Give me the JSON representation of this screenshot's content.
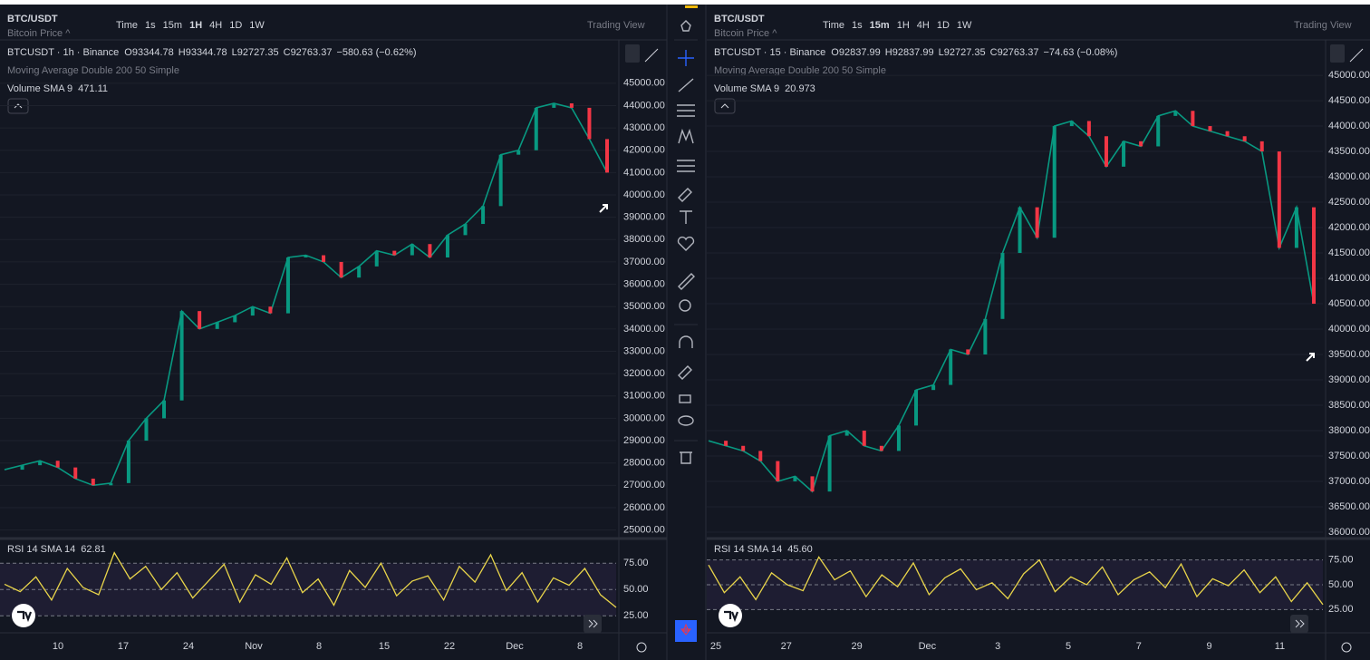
{
  "panels": [
    {
      "symbol": "BTC/USDT",
      "subtitle": "Bitcoin Price ^",
      "timeframes": [
        "Time",
        "1s",
        "15m",
        "1H",
        "4H",
        "1D",
        "1W"
      ],
      "active_timeframe": "1H",
      "layout_label": "Trading View",
      "legend_name": "BTCUSDT · 1h · Binance",
      "ohlc": [
        {
          "label": "O",
          "value": "93344.78"
        },
        {
          "label": "H",
          "value": "93344.78"
        },
        {
          "label": "L",
          "value": "92727.35"
        },
        {
          "label": "C",
          "value": "92763.37"
        }
      ],
      "change": "−580.63 (−0.62%)",
      "ma_label": "Moving Average Double 200 50 Simple",
      "volume_label": "Volume SMA 9",
      "volume_value": "471.11",
      "ylim": [
        24700,
        46900
      ],
      "yticks": [
        {
          "value": 45000,
          "label": "45000.00"
        },
        {
          "value": 44000,
          "label": "44000.00"
        },
        {
          "value": 43000,
          "label": "43000.00"
        },
        {
          "value": 42000,
          "label": "42000.00"
        },
        {
          "value": 41000,
          "label": "41000.00"
        },
        {
          "value": 40000,
          "label": "40000.00"
        },
        {
          "value": 39000,
          "label": "39000.00"
        },
        {
          "value": 38000,
          "label": "38000.00"
        },
        {
          "value": 37000,
          "label": "37000.00"
        },
        {
          "value": 36000,
          "label": "36000.00"
        },
        {
          "value": 35000,
          "label": "35000.00"
        },
        {
          "value": 34000,
          "label": "34000.00"
        },
        {
          "value": 33000,
          "label": "33000.00"
        },
        {
          "value": 32000,
          "label": "32000.00"
        },
        {
          "value": 31000,
          "label": "31000.00"
        },
        {
          "value": 30000,
          "label": "30000.00"
        },
        {
          "value": 29000,
          "label": "29000.00"
        },
        {
          "value": 28000,
          "label": "28000.00"
        },
        {
          "value": 27000,
          "label": "27000.00"
        },
        {
          "value": 26000,
          "label": "26000.00"
        },
        {
          "value": 25000,
          "label": "25000.00"
        }
      ],
      "price": [
        27700,
        27900,
        28100,
        27800,
        27300,
        27000,
        27100,
        29000,
        30000,
        30800,
        34800,
        34000,
        34300,
        34600,
        35000,
        34700,
        37200,
        37300,
        37000,
        36300,
        36800,
        37500,
        37300,
        37800,
        37200,
        38200,
        38700,
        39500,
        41800,
        42000,
        43900,
        44100,
        43900,
        42500,
        41000
      ],
      "rsi_label": "RSI 14 SMA 14",
      "rsi_value": "62.81",
      "rsi_ylim": [
        14,
        95
      ],
      "rsi_ticks": [
        {
          "value": 75,
          "label": "75.00"
        },
        {
          "value": 50,
          "label": "50.00"
        },
        {
          "value": 25,
          "label": "25.00"
        }
      ],
      "rsi": [
        55,
        48,
        62,
        40,
        70,
        52,
        45,
        85,
        60,
        72,
        50,
        66,
        42,
        58,
        74,
        38,
        64,
        55,
        80,
        47,
        60,
        35,
        68,
        52,
        75,
        44,
        58,
        63,
        40,
        72,
        57,
        83,
        49,
        66,
        38,
        61,
        54,
        70,
        45,
        33
      ],
      "dates": [
        "10",
        "17",
        "24",
        "Nov",
        "8",
        "15",
        "22",
        "Dec",
        "8"
      ]
    },
    {
      "symbol": "BTC/USDT",
      "subtitle": "Bitcoin Price ^",
      "timeframes": [
        "Time",
        "1s",
        "15m",
        "1H",
        "4H",
        "1D",
        "1W"
      ],
      "active_timeframe": "15m",
      "layout_label": "Trading View",
      "legend_name": "BTCUSDT · 15 · Binance",
      "ohlc": [
        {
          "label": "O",
          "value": "92837.99"
        },
        {
          "label": "H",
          "value": "92837.99"
        },
        {
          "label": "L",
          "value": "92727.35"
        },
        {
          "label": "C",
          "value": "92763.37"
        }
      ],
      "change": "−74.63 (−0.08%)",
      "ma_label": "Moving Average Double 200 50 Simple",
      "volume_label": "Volume SMA 9",
      "volume_value": "20.973",
      "ylim": [
        35910,
        45680
      ],
      "yticks": [
        {
          "value": 45000,
          "label": "45000.00"
        },
        {
          "value": 44500,
          "label": "44500.00"
        },
        {
          "value": 44000,
          "label": "44000.00"
        },
        {
          "value": 43500,
          "label": "43500.00"
        },
        {
          "value": 43000,
          "label": "43000.00"
        },
        {
          "value": 42500,
          "label": "42500.00"
        },
        {
          "value": 42000,
          "label": "42000.00"
        },
        {
          "value": 41500,
          "label": "41500.00"
        },
        {
          "value": 41000,
          "label": "41000.00"
        },
        {
          "value": 40500,
          "label": "40500.00"
        },
        {
          "value": 40000,
          "label": "40000.00"
        },
        {
          "value": 39500,
          "label": "39500.00"
        },
        {
          "value": 39000,
          "label": "39000.00"
        },
        {
          "value": 38500,
          "label": "38500.00"
        },
        {
          "value": 38000,
          "label": "38000.00"
        },
        {
          "value": 37500,
          "label": "37500.00"
        },
        {
          "value": 37000,
          "label": "37000.00"
        },
        {
          "value": 36500,
          "label": "36500.00"
        },
        {
          "value": 36000,
          "label": "36000.00"
        }
      ],
      "price": [
        37800,
        37700,
        37600,
        37400,
        37000,
        37100,
        36800,
        37900,
        38000,
        37700,
        37600,
        38100,
        38800,
        38900,
        39600,
        39500,
        40200,
        41500,
        42400,
        41800,
        44000,
        44100,
        43800,
        43200,
        43700,
        43600,
        44200,
        44300,
        44000,
        43900,
        43800,
        43700,
        43500,
        41600,
        42400,
        40500
      ],
      "rsi_label": "RSI 14 SMA 14",
      "rsi_value": "45.60",
      "rsi_ylim": [
        7,
        93
      ],
      "rsi_ticks": [
        {
          "value": 75,
          "label": "75.00"
        },
        {
          "value": 50,
          "label": "50.00"
        },
        {
          "value": 25,
          "label": "25.00"
        }
      ],
      "rsi": [
        70,
        42,
        58,
        35,
        62,
        50,
        44,
        78,
        55,
        64,
        38,
        60,
        48,
        72,
        40,
        57,
        66,
        45,
        52,
        36,
        61,
        75,
        43,
        58,
        50,
        68,
        40,
        55,
        63,
        47,
        71,
        38,
        56,
        49,
        65,
        42,
        58,
        33,
        52,
        30
      ],
      "dates": [
        "25",
        "27",
        "29",
        "Dec",
        "3",
        "5",
        "7",
        "9",
        "11"
      ]
    }
  ]
}
